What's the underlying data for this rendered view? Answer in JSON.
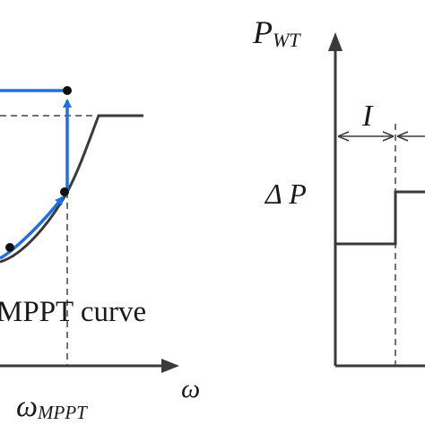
{
  "left_panel": {
    "curve_label": "MPPT curve",
    "x_axis_label": "ω",
    "omega_symbol": "ω",
    "omega_subscript": "MPPT"
  },
  "right_panel": {
    "y_axis_symbol": "P",
    "y_axis_subscript": "WT",
    "interval_label": "I",
    "delta_label": "Δ P"
  },
  "colors": {
    "axis": "#3a3a3a",
    "curve": "#3a3a3a",
    "trajectory": "#1f6fe0",
    "marker": "#111111",
    "dashed": "#444444"
  }
}
